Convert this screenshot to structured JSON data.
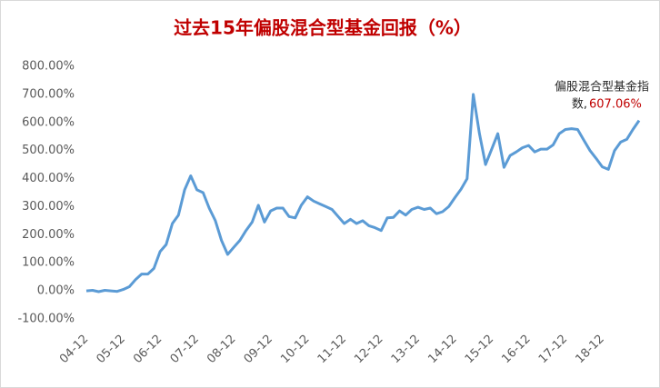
{
  "chart_data": {
    "type": "line",
    "title": "过去15年偏股混合型基金回报（%）",
    "categories": [
      "04-12",
      null,
      null,
      null,
      null,
      null,
      "05-12",
      null,
      null,
      null,
      null,
      null,
      "06-12",
      null,
      null,
      null,
      null,
      null,
      "07-12",
      null,
      null,
      null,
      null,
      null,
      "08-12",
      null,
      null,
      null,
      null,
      null,
      "09-12",
      null,
      null,
      null,
      null,
      null,
      "10-12",
      null,
      null,
      null,
      null,
      null,
      "11-12",
      null,
      null,
      null,
      null,
      null,
      "12-12",
      null,
      null,
      null,
      null,
      null,
      "13-12",
      null,
      null,
      null,
      null,
      null,
      "14-12",
      null,
      null,
      null,
      null,
      null,
      "15-12",
      null,
      null,
      null,
      null,
      null,
      "16-12",
      null,
      null,
      null,
      null,
      null,
      "17-12",
      null,
      null,
      null,
      null,
      null,
      "18-12",
      null,
      null,
      null,
      null,
      null,
      null
    ],
    "series": [
      {
        "name": "偏股混合型基金指数",
        "color": "#5b9bd5",
        "values": [
          0,
          2,
          -3,
          2,
          0,
          -2,
          5,
          15,
          40,
          60,
          60,
          80,
          140,
          165,
          240,
          270,
          360,
          410,
          360,
          350,
          295,
          250,
          180,
          130,
          155,
          180,
          215,
          245,
          305,
          245,
          285,
          295,
          295,
          265,
          260,
          305,
          335,
          320,
          310,
          300,
          290,
          265,
          240,
          255,
          240,
          250,
          232,
          225,
          215,
          260,
          262,
          285,
          270,
          290,
          298,
          290,
          295,
          275,
          282,
          300,
          332,
          362,
          400,
          700,
          560,
          450,
          505,
          560,
          440,
          482,
          495,
          510,
          518,
          495,
          505,
          505,
          520,
          560,
          575,
          578,
          575,
          537,
          500,
          472,
          442,
          433,
          500,
          530,
          540,
          575,
          607.06
        ],
        "value_labels": [
          null,
          null,
          null,
          null,
          null,
          null,
          null,
          null,
          null,
          null,
          null,
          null,
          null,
          null,
          null,
          null,
          null,
          null,
          null,
          null,
          null,
          null,
          null,
          null,
          null,
          null,
          null,
          null,
          null,
          null,
          null,
          null,
          null,
          null,
          null,
          null,
          null,
          null,
          null,
          null,
          null,
          null,
          null,
          null,
          null,
          null,
          null,
          null,
          null,
          null,
          null,
          null,
          null,
          null,
          null,
          null,
          null,
          null,
          null,
          null,
          null,
          null,
          null,
          null,
          null,
          null,
          null,
          null,
          null,
          null,
          null,
          null,
          null,
          null,
          null,
          null,
          null,
          null,
          null,
          null,
          null,
          null,
          null,
          null,
          null,
          null,
          null,
          null,
          null,
          null,
          "607.06%"
        ]
      }
    ],
    "annotation": [
      "偏股混合型基金指",
      "数,"
    ],
    "ylim": [
      -100,
      800
    ],
    "yticks": [
      {
        "value": -100,
        "label": "-100.00%"
      },
      {
        "value": 0,
        "label": "0.00%"
      },
      {
        "value": 100,
        "label": "100.00%"
      },
      {
        "value": 200,
        "label": "200.00%"
      },
      {
        "value": 300,
        "label": "300.00%"
      },
      {
        "value": 400,
        "label": "400.00%"
      },
      {
        "value": 500,
        "label": "500.00%"
      },
      {
        "value": 600,
        "label": "600.00%"
      },
      {
        "value": 700,
        "label": "700.00%"
      },
      {
        "value": 800,
        "label": "800.00%"
      }
    ],
    "grid": false
  }
}
